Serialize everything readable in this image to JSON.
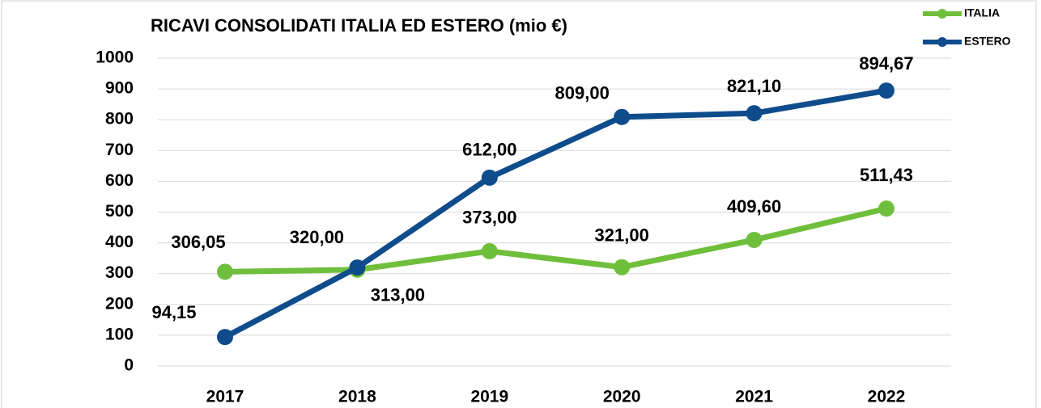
{
  "chart_data": {
    "type": "line",
    "title": "RICAVI CONSOLIDATI ITALIA ED ESTERO (mio €)",
    "categories": [
      "2017",
      "2018",
      "2019",
      "2020",
      "2021",
      "2022"
    ],
    "series": [
      {
        "name": "ITALIA",
        "color": "#70bf3c",
        "values": [
          306.05,
          313.0,
          373.0,
          321.0,
          409.6,
          511.43
        ],
        "value_labels": [
          "306,05",
          "313,00",
          "373,00",
          "321,00",
          "409,60",
          "511,43"
        ]
      },
      {
        "name": "ESTERO",
        "color": "#0f4c8c",
        "values": [
          94.15,
          320.0,
          612.0,
          809.0,
          821.1,
          894.67
        ],
        "value_labels": [
          "94,15",
          "320,00",
          "612,00",
          "809,00",
          "821,10",
          "894,67"
        ]
      }
    ],
    "ylim": [
      0,
      1000
    ],
    "yticks": [
      0,
      100,
      200,
      300,
      400,
      500,
      600,
      700,
      800,
      900,
      1000
    ],
    "grid": true,
    "legend": "top-right"
  }
}
